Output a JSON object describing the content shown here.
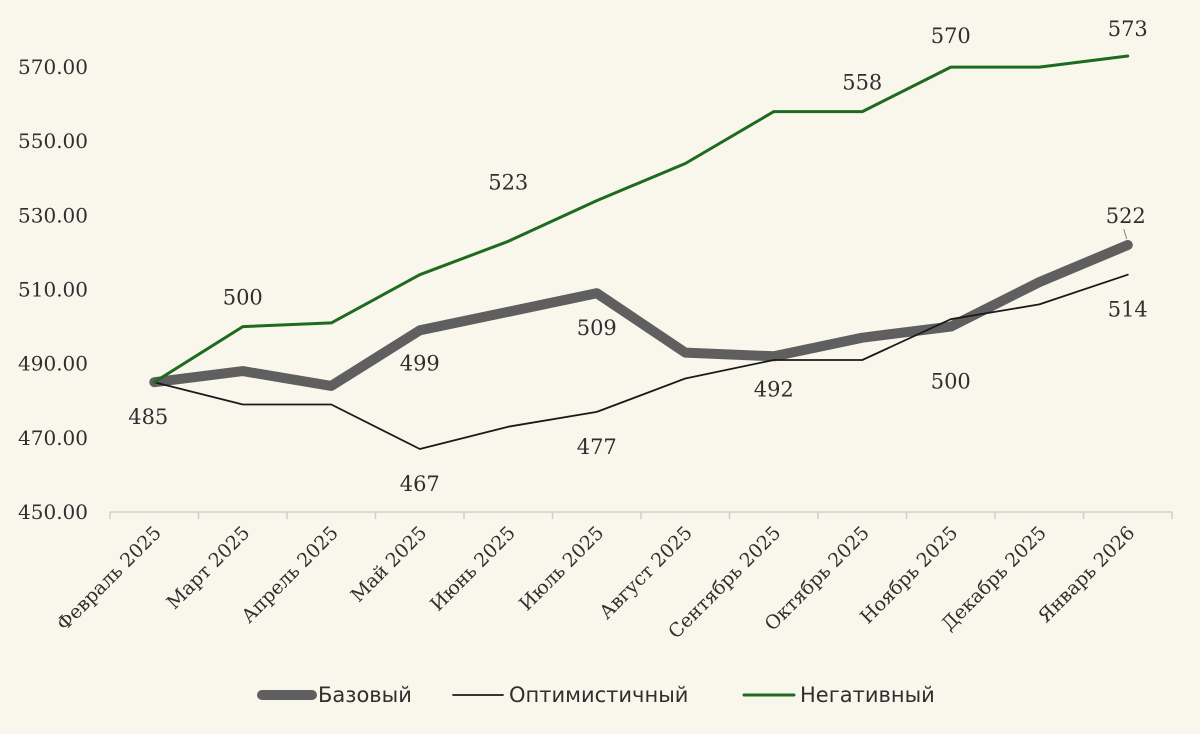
{
  "chart_data": {
    "type": "line",
    "categories": [
      "Февраль 2025",
      "Март 2025",
      "Апрель 2025",
      "Май 2025",
      "Июнь 2025",
      "Июль 2025",
      "Август 2025",
      "Сентябрь 2025",
      "Октябрь 2025",
      "Ноябрь 2025",
      "Декабрь 2025",
      "Январь 2026"
    ],
    "ylim": [
      450,
      580
    ],
    "yticks": [
      450,
      470,
      490,
      510,
      530,
      550,
      570
    ],
    "ytick_labels": [
      "450.00",
      "470.00",
      "490.00",
      "510.00",
      "530.00",
      "550.00",
      "570.00"
    ],
    "grid": false,
    "legend_position": "bottom",
    "series": [
      {
        "name": "Базовый",
        "color": "#5f5f5f",
        "style": "thick",
        "values": [
          485,
          488,
          484,
          499,
          504,
          509,
          493,
          492,
          497,
          500,
          512,
          522
        ],
        "labels": [
          {
            "index": 3,
            "text": "499"
          },
          {
            "index": 5,
            "text": "509"
          },
          {
            "index": 7,
            "text": "492"
          },
          {
            "index": 9,
            "text": "500"
          },
          {
            "index": 11,
            "text": "522"
          }
        ]
      },
      {
        "name": "Оптимистичный",
        "color": "#1a1a1a",
        "style": "thin",
        "values": [
          485,
          479,
          479,
          467,
          473,
          477,
          486,
          491,
          491,
          502,
          506,
          514
        ],
        "labels": [
          {
            "index": 0,
            "text": "485"
          },
          {
            "index": 3,
            "text": "467"
          },
          {
            "index": 5,
            "text": "477"
          },
          {
            "index": 11,
            "text": "514"
          }
        ]
      },
      {
        "name": "Негативный",
        "color": "#1e6a1e",
        "style": "medium",
        "values": [
          485,
          500,
          501,
          514,
          523,
          534,
          544,
          558,
          558,
          570,
          570,
          573
        ],
        "labels": [
          {
            "index": 1,
            "text": "500"
          },
          {
            "index": 4,
            "text": "523"
          },
          {
            "index": 8,
            "text": "558"
          },
          {
            "index": 9,
            "text": "570"
          },
          {
            "index": 11,
            "text": "573"
          }
        ]
      }
    ]
  }
}
